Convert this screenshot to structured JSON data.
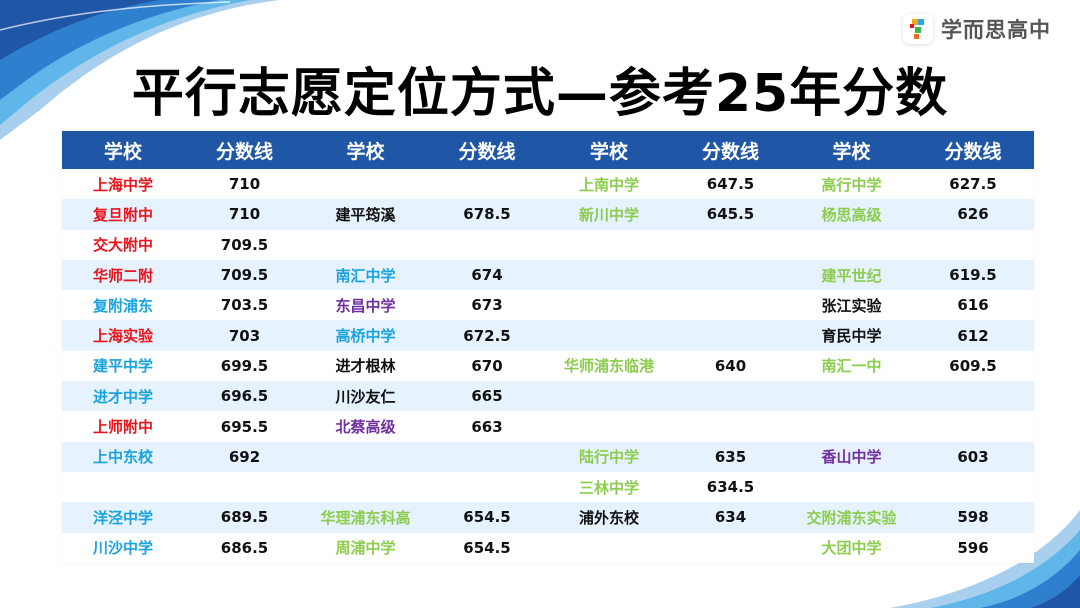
{
  "title": "平行志愿定位方式—参考25年分数",
  "logo": {
    "icon": "xueersi-logo-icon",
    "text": "学而思高中"
  },
  "colors": {
    "header_bg": "#1f56a6",
    "row_alt_bg": "#e6f2fd",
    "red": "#e8141c",
    "blue": "#1aa3e0",
    "purple": "#7030a0",
    "green": "#8ccc4e",
    "black": "#111111"
  },
  "table": {
    "headers": [
      "学校",
      "分数线",
      "学校",
      "分数线",
      "学校",
      "分数线",
      "学校",
      "分数线"
    ],
    "rows": [
      [
        {
          "s": "上海中学",
          "c": "red"
        },
        {
          "v": "710"
        },
        {
          "s": "",
          "c": "black"
        },
        {
          "v": ""
        },
        {
          "s": "上南中学",
          "c": "green"
        },
        {
          "v": "647.5"
        },
        {
          "s": "高行中学",
          "c": "green"
        },
        {
          "v": "627.5"
        }
      ],
      [
        {
          "s": "复旦附中",
          "c": "red"
        },
        {
          "v": "710"
        },
        {
          "s": "建平筠溪",
          "c": "black"
        },
        {
          "v": "678.5"
        },
        {
          "s": "新川中学",
          "c": "green"
        },
        {
          "v": "645.5"
        },
        {
          "s": "杨思高级",
          "c": "green"
        },
        {
          "v": "626"
        }
      ],
      [
        {
          "s": "交大附中",
          "c": "red"
        },
        {
          "v": "709.5"
        },
        {
          "s": "",
          "c": "black"
        },
        {
          "v": ""
        },
        {
          "s": "",
          "c": "black"
        },
        {
          "v": ""
        },
        {
          "s": "",
          "c": "black"
        },
        {
          "v": ""
        }
      ],
      [
        {
          "s": "华师二附",
          "c": "red"
        },
        {
          "v": "709.5"
        },
        {
          "s": "南汇中学",
          "c": "blue"
        },
        {
          "v": "674"
        },
        {
          "s": "",
          "c": "black"
        },
        {
          "v": ""
        },
        {
          "s": "建平世纪",
          "c": "green"
        },
        {
          "v": "619.5"
        }
      ],
      [
        {
          "s": "复附浦东",
          "c": "blue"
        },
        {
          "v": "703.5"
        },
        {
          "s": "东昌中学",
          "c": "purple"
        },
        {
          "v": "673"
        },
        {
          "s": "",
          "c": "black"
        },
        {
          "v": ""
        },
        {
          "s": "张江实验",
          "c": "black"
        },
        {
          "v": "616"
        }
      ],
      [
        {
          "s": "上海实验",
          "c": "red"
        },
        {
          "v": "703"
        },
        {
          "s": "高桥中学",
          "c": "blue"
        },
        {
          "v": "672.5"
        },
        {
          "s": "",
          "c": "black"
        },
        {
          "v": ""
        },
        {
          "s": "育民中学",
          "c": "black"
        },
        {
          "v": "612"
        }
      ],
      [
        {
          "s": "建平中学",
          "c": "blue"
        },
        {
          "v": "699.5"
        },
        {
          "s": "进才根林",
          "c": "black"
        },
        {
          "v": "670"
        },
        {
          "s": "华师浦东临港",
          "c": "green"
        },
        {
          "v": "640"
        },
        {
          "s": "南汇一中",
          "c": "green"
        },
        {
          "v": "609.5"
        }
      ],
      [
        {
          "s": "进才中学",
          "c": "blue"
        },
        {
          "v": "696.5"
        },
        {
          "s": "川沙友仁",
          "c": "black"
        },
        {
          "v": "665"
        },
        {
          "s": "",
          "c": "black"
        },
        {
          "v": ""
        },
        {
          "s": "",
          "c": "black"
        },
        {
          "v": ""
        }
      ],
      [
        {
          "s": "上师附中",
          "c": "red"
        },
        {
          "v": "695.5"
        },
        {
          "s": "北蔡高级",
          "c": "purple"
        },
        {
          "v": "663"
        },
        {
          "s": "",
          "c": "black"
        },
        {
          "v": ""
        },
        {
          "s": "",
          "c": "black"
        },
        {
          "v": ""
        }
      ],
      [
        {
          "s": "上中东校",
          "c": "blue"
        },
        {
          "v": "692"
        },
        {
          "s": "",
          "c": "black"
        },
        {
          "v": ""
        },
        {
          "s": "陆行中学",
          "c": "green"
        },
        {
          "v": "635"
        },
        {
          "s": "香山中学",
          "c": "purple"
        },
        {
          "v": "603"
        }
      ],
      [
        {
          "s": "",
          "c": "black"
        },
        {
          "v": ""
        },
        {
          "s": "",
          "c": "black"
        },
        {
          "v": ""
        },
        {
          "s": "三林中学",
          "c": "green"
        },
        {
          "v": "634.5"
        },
        {
          "s": "",
          "c": "black"
        },
        {
          "v": ""
        }
      ],
      [
        {
          "s": "洋泾中学",
          "c": "blue"
        },
        {
          "v": "689.5"
        },
        {
          "s": "华理浦东科高",
          "c": "green"
        },
        {
          "v": "654.5"
        },
        {
          "s": "浦外东校",
          "c": "black"
        },
        {
          "v": "634"
        },
        {
          "s": "交附浦东实验",
          "c": "green"
        },
        {
          "v": "598"
        }
      ],
      [
        {
          "s": "川沙中学",
          "c": "blue"
        },
        {
          "v": "686.5"
        },
        {
          "s": "周浦中学",
          "c": "green"
        },
        {
          "v": "654.5"
        },
        {
          "s": "",
          "c": "black"
        },
        {
          "v": ""
        },
        {
          "s": "大团中学",
          "c": "green"
        },
        {
          "v": "596"
        }
      ]
    ]
  }
}
